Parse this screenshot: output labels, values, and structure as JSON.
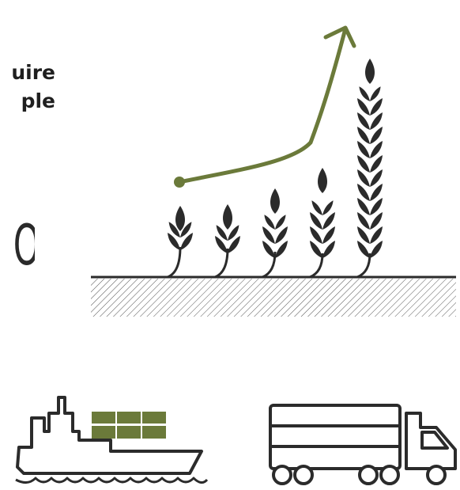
{
  "headline": {
    "line1": "uire",
    "line2": "ple"
  },
  "big_word": "ON",
  "colors": {
    "accent": "#6b7a3a",
    "ink": "#2b2b2b",
    "background": "#ffffff"
  },
  "icons": {
    "growth_arrow": "growth-arrow-icon",
    "wheat": "wheat-stalk-icon",
    "ship": "cargo-ship-icon",
    "truck": "truck-icon"
  },
  "growth_stages": [
    1,
    2,
    3,
    4,
    5
  ]
}
